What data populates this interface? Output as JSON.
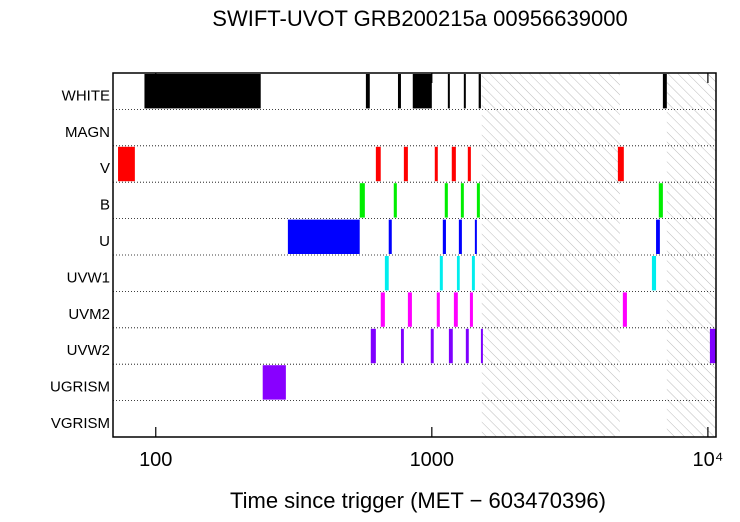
{
  "chart_data": {
    "type": "timeline",
    "title": "SWIFT-UVOT GRB200215a 00956639000",
    "x_label": "Time since trigger (MET − 603470396)",
    "log_x": true,
    "xlim": [
      70,
      10700
    ],
    "xticks": [
      100,
      1000,
      {
        "value": 10000,
        "label": "10⁴"
      }
    ],
    "shaded_intervals": [
      [
        1517,
        4800
      ],
      [
        7100,
        10700
      ]
    ],
    "series": [
      {
        "name": "WHITE",
        "color": "#000000",
        "intervals": [
          [
            91,
            240
          ],
          [
            577,
            596
          ],
          [
            754,
            773
          ],
          [
            853,
            1000
          ],
          [
            1143,
            1162
          ],
          [
            1306,
            1328
          ],
          [
            1478,
            1506
          ],
          [
            6870,
            7100
          ]
        ]
      },
      {
        "name": "MAGN",
        "color": "#000000",
        "intervals": []
      },
      {
        "name": "V",
        "color": "#ff0000",
        "intervals": [
          [
            73,
            84
          ],
          [
            627,
            653
          ],
          [
            792,
            819
          ],
          [
            1025,
            1051
          ],
          [
            1181,
            1222
          ],
          [
            1350,
            1385
          ],
          [
            4720,
            4960
          ]
        ]
      },
      {
        "name": "B",
        "color": "#00ee00",
        "intervals": [
          [
            548,
            572
          ],
          [
            728,
            747
          ],
          [
            1114,
            1143
          ],
          [
            1274,
            1306
          ],
          [
            1456,
            1493
          ],
          [
            6640,
            6870
          ]
        ]
      },
      {
        "name": "U",
        "color": "#0000ff",
        "intervals": [
          [
            301,
            548
          ],
          [
            698,
            716
          ],
          [
            1096,
            1125
          ],
          [
            1253,
            1285
          ],
          [
            1432,
            1456
          ],
          [
            6490,
            6700
          ]
        ]
      },
      {
        "name": "UVW1",
        "color": "#00eeee",
        "intervals": [
          [
            676,
            698
          ],
          [
            1069,
            1096
          ],
          [
            1233,
            1262
          ],
          [
            1397,
            1432
          ],
          [
            6270,
            6490
          ]
        ]
      },
      {
        "name": "UVM2",
        "color": "#ff00ff",
        "intervals": [
          [
            653,
            676
          ],
          [
            819,
            847
          ],
          [
            1042,
            1069
          ],
          [
            1202,
            1242
          ],
          [
            1374,
            1409
          ],
          [
            4920,
            5090
          ]
        ]
      },
      {
        "name": "UVW2",
        "color": "#7f00ff",
        "intervals": [
          [
            601,
            627
          ],
          [
            773,
            792
          ],
          [
            991,
            1016
          ],
          [
            1153,
            1191
          ],
          [
            1328,
            1361
          ],
          [
            1506,
            1530
          ],
          [
            10170,
            10700
          ]
        ]
      },
      {
        "name": "UGRISM",
        "color": "#8800ff",
        "intervals": [
          [
            244,
            296
          ]
        ]
      },
      {
        "name": "VGRISM",
        "color": "#000000",
        "intervals": []
      }
    ]
  }
}
